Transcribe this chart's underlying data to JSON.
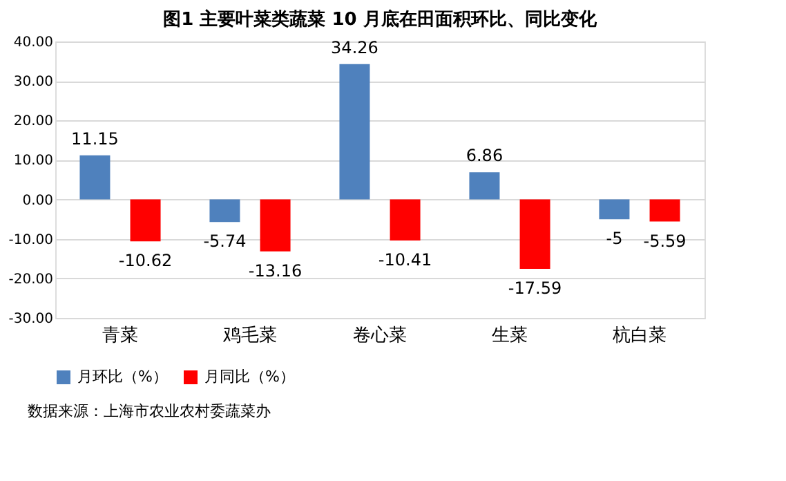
{
  "chart_data": {
    "type": "bar",
    "title": "图1 主要叶菜类蔬菜 10 月底在田面积环比、同比变化",
    "categories": [
      "青菜",
      "鸡毛菜",
      "卷心菜",
      "生菜",
      "杭白菜"
    ],
    "series": [
      {
        "name": "月环比（%）",
        "color": "#4f81bd",
        "values": [
          11.15,
          -5.74,
          34.26,
          6.86,
          -5
        ]
      },
      {
        "name": "月同比（%）",
        "color": "#ff0000",
        "values": [
          -10.62,
          -13.16,
          -10.41,
          -17.59,
          -5.59
        ]
      }
    ],
    "ylim": [
      -30,
      40
    ],
    "yticks": [
      {
        "value": -30,
        "label": "-30.00"
      },
      {
        "value": -20,
        "label": "-20.00"
      },
      {
        "value": -10,
        "label": "-10.00"
      },
      {
        "value": 0,
        "label": "0.00"
      },
      {
        "value": 10,
        "label": "10.00"
      },
      {
        "value": 20,
        "label": "20.00"
      },
      {
        "value": 30,
        "label": "30.00"
      },
      {
        "value": 40,
        "label": "40.00"
      }
    ],
    "grid": "y",
    "legend": "bottom",
    "data_labels": true,
    "annotations": [
      "数据来源：上海市农业农村委蔬菜办"
    ]
  }
}
